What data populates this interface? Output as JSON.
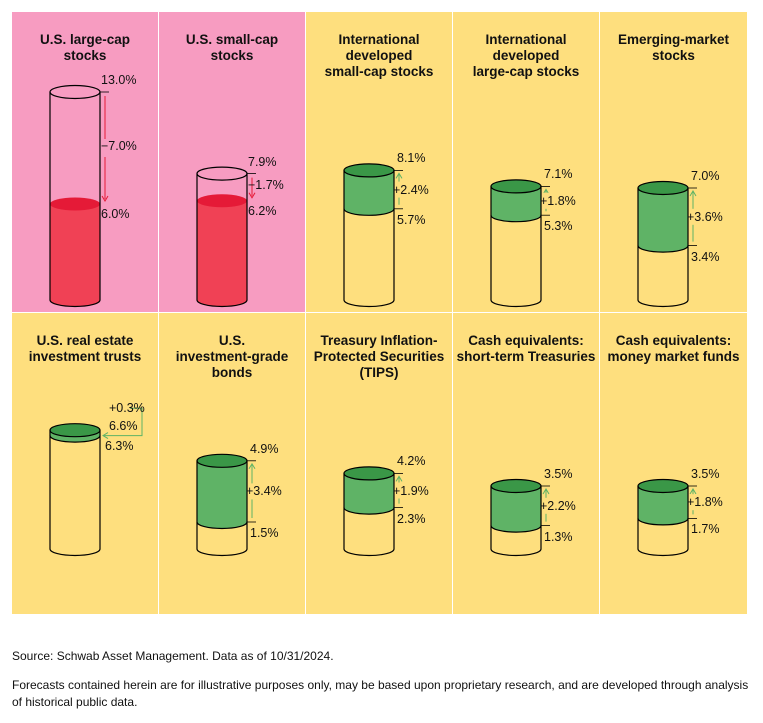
{
  "colors": {
    "decrease_panel": "#F79CC1",
    "increase_panel": "#FEDF7E",
    "grid_line": "#FFFFFF",
    "red_fill": "#F04155",
    "red_top": "#E51A37",
    "green_fill": "#5FB366",
    "green_top": "#3A9747",
    "green_arrow": "#5FB366",
    "red_arrow": "#E51A37",
    "outline": "#000000"
  },
  "chart_data": {
    "type": "cylinder-comparison",
    "title": "",
    "scale_max": 13.0,
    "panels": [
      {
        "name": "U.S. large-cap stocks",
        "title_lines": [
          "U.S. large-cap",
          "stocks"
        ],
        "from": 13.0,
        "to": 6.0,
        "change": -7.0,
        "from_label": "13.0%",
        "to_label": "6.0%",
        "change_label": "−7.0%",
        "direction": "decrease"
      },
      {
        "name": "U.S. small-cap stocks",
        "title_lines": [
          "U.S. small-cap",
          "stocks"
        ],
        "from": 7.9,
        "to": 6.2,
        "change": -1.7,
        "from_label": "7.9%",
        "to_label": "6.2%",
        "change_label": "−1.7%",
        "direction": "decrease"
      },
      {
        "name": "International developed small-cap stocks",
        "title_lines": [
          "International",
          "developed",
          "small-cap stocks"
        ],
        "from": 5.7,
        "to": 8.1,
        "change": 2.4,
        "from_label": "5.7%",
        "to_label": "8.1%",
        "change_label": "+2.4%",
        "direction": "increase"
      },
      {
        "name": "International developed large-cap stocks",
        "title_lines": [
          "International",
          "developed",
          "large-cap stocks"
        ],
        "from": 5.3,
        "to": 7.1,
        "change": 1.8,
        "from_label": "5.3%",
        "to_label": "7.1%",
        "change_label": "+1.8%",
        "direction": "increase"
      },
      {
        "name": "Emerging-market stocks",
        "title_lines": [
          "Emerging-market",
          "stocks"
        ],
        "from": 3.4,
        "to": 7.0,
        "change": 3.6,
        "from_label": "3.4%",
        "to_label": "7.0%",
        "change_label": "+3.6%",
        "direction": "increase"
      },
      {
        "name": "U.S. real estate investment trusts",
        "title_lines": [
          "U.S. real estate",
          "investment trusts"
        ],
        "from": 6.3,
        "to": 6.6,
        "change": 0.3,
        "from_label": "6.3%",
        "to_label": "6.6%",
        "change_label": "+0.3%",
        "direction": "increase"
      },
      {
        "name": "U.S. investment-grade bonds",
        "title_lines": [
          "U.S.",
          "investment-grade",
          "bonds"
        ],
        "from": 1.5,
        "to": 4.9,
        "change": 3.4,
        "from_label": "1.5%",
        "to_label": "4.9%",
        "change_label": "+3.4%",
        "direction": "increase"
      },
      {
        "name": "Treasury Inflation-Protected Securities (TIPS)",
        "title_lines": [
          "Treasury Inflation-",
          "Protected Securities",
          "(TIPS)"
        ],
        "from": 2.3,
        "to": 4.2,
        "change": 1.9,
        "from_label": "2.3%",
        "to_label": "4.2%",
        "change_label": "+1.9%",
        "direction": "increase"
      },
      {
        "name": "Cash equivalents: short-term Treasuries",
        "title_lines": [
          "Cash equivalents:",
          "short-term Treasuries"
        ],
        "from": 1.3,
        "to": 3.5,
        "change": 2.2,
        "from_label": "1.3%",
        "to_label": "3.5%",
        "change_label": "+2.2%",
        "direction": "increase"
      },
      {
        "name": "Cash equivalents: money market funds",
        "title_lines": [
          "Cash equivalents:",
          "money market funds"
        ],
        "from": 1.7,
        "to": 3.5,
        "change": 1.8,
        "from_label": "1.7%",
        "to_label": "3.5%",
        "change_label": "+1.8%",
        "direction": "increase"
      }
    ]
  },
  "notes": {
    "source": "Source: Schwab Asset Management. Data as of 10/31/2024.",
    "disclaimer": "Forecasts contained herein are for illustrative purposes only, may be based upon proprietary research, and are developed through analysis of historical public data."
  }
}
